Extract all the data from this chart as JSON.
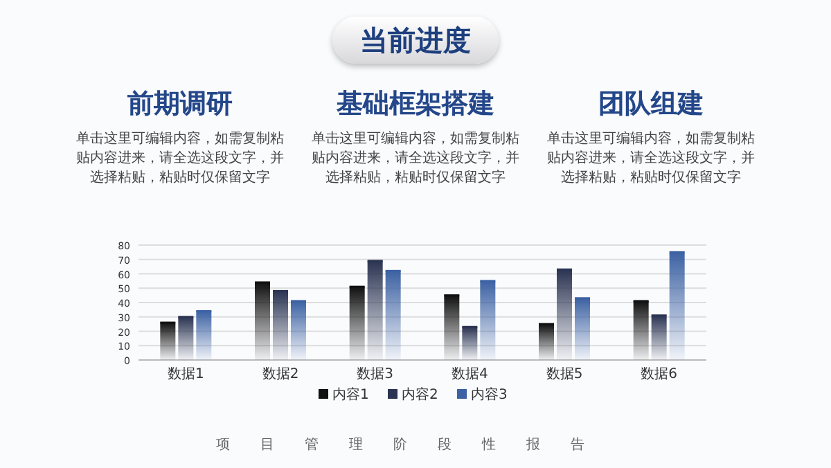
{
  "chart_data": {
    "type": "bar",
    "title": "当前进度",
    "annotations": [
      "前期调研",
      "单击这里可编辑内容，如需复制粘贴内容进来，请全选这段文字，并选择粘贴，粘贴时仅保留文字",
      "基础框架搭建",
      "单击这里可编辑内容，如需复制粘贴内容进来，请全选这段文字，并选择粘贴，粘贴时仅保留文字",
      "团队组建",
      "单击这里可编辑内容，如需复制粘贴内容进来，请全选这段文字，并选择粘贴，粘贴时仅保留文字",
      "项目管理阶段性报告"
    ],
    "categories": [
      "数据1",
      "数据2",
      "数据3",
      "数据4",
      "数据5",
      "数据6"
    ],
    "series": [
      {
        "name": "内容1",
        "color": "#111111",
        "values": [
          26,
          54,
          51,
          45,
          25,
          41
        ]
      },
      {
        "name": "内容2",
        "color": "#2b3452",
        "values": [
          30,
          48,
          69,
          23,
          63,
          31
        ]
      },
      {
        "name": "内容3",
        "color": "#3d62a3",
        "values": [
          34,
          41,
          62,
          55,
          43,
          75
        ]
      }
    ],
    "ylim": [
      0,
      80
    ],
    "yticks": [
      0,
      10,
      20,
      30,
      40,
      50,
      60,
      70,
      80
    ],
    "grid": "y",
    "legend": "bottom"
  }
}
